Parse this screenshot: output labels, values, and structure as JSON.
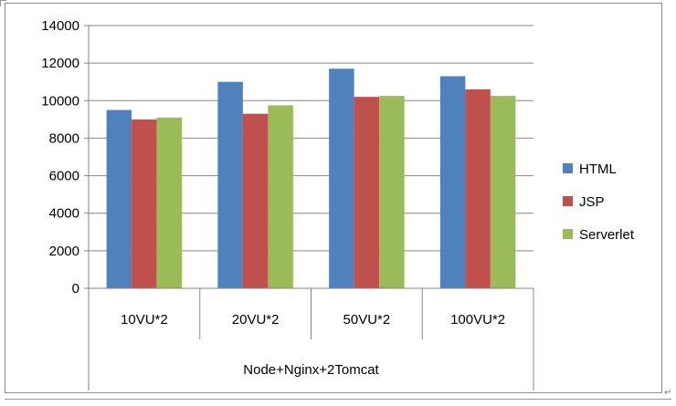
{
  "chart_data": {
    "type": "bar",
    "categories": [
      "10VU*2",
      "20VU*2",
      "50VU*2",
      "100VU*2"
    ],
    "group_label": "Node+Nginx+2Tomcat",
    "series": [
      {
        "name": "HTML",
        "color": "#4f81bd",
        "values": [
          9500,
          11000,
          11700,
          11300
        ]
      },
      {
        "name": "JSP",
        "color": "#c0504d",
        "values": [
          9000,
          9300,
          10200,
          10600
        ]
      },
      {
        "name": "Serverlet",
        "color": "#9bbb59",
        "values": [
          9100,
          9750,
          10250,
          10250
        ]
      }
    ],
    "ylim": [
      0,
      14000
    ],
    "yticks": [
      0,
      2000,
      4000,
      6000,
      8000,
      10000,
      12000,
      14000
    ],
    "grid": true,
    "legend_position": "right",
    "title": "",
    "xlabel": "",
    "ylabel": ""
  },
  "doc": {
    "return_mark": "↵"
  }
}
